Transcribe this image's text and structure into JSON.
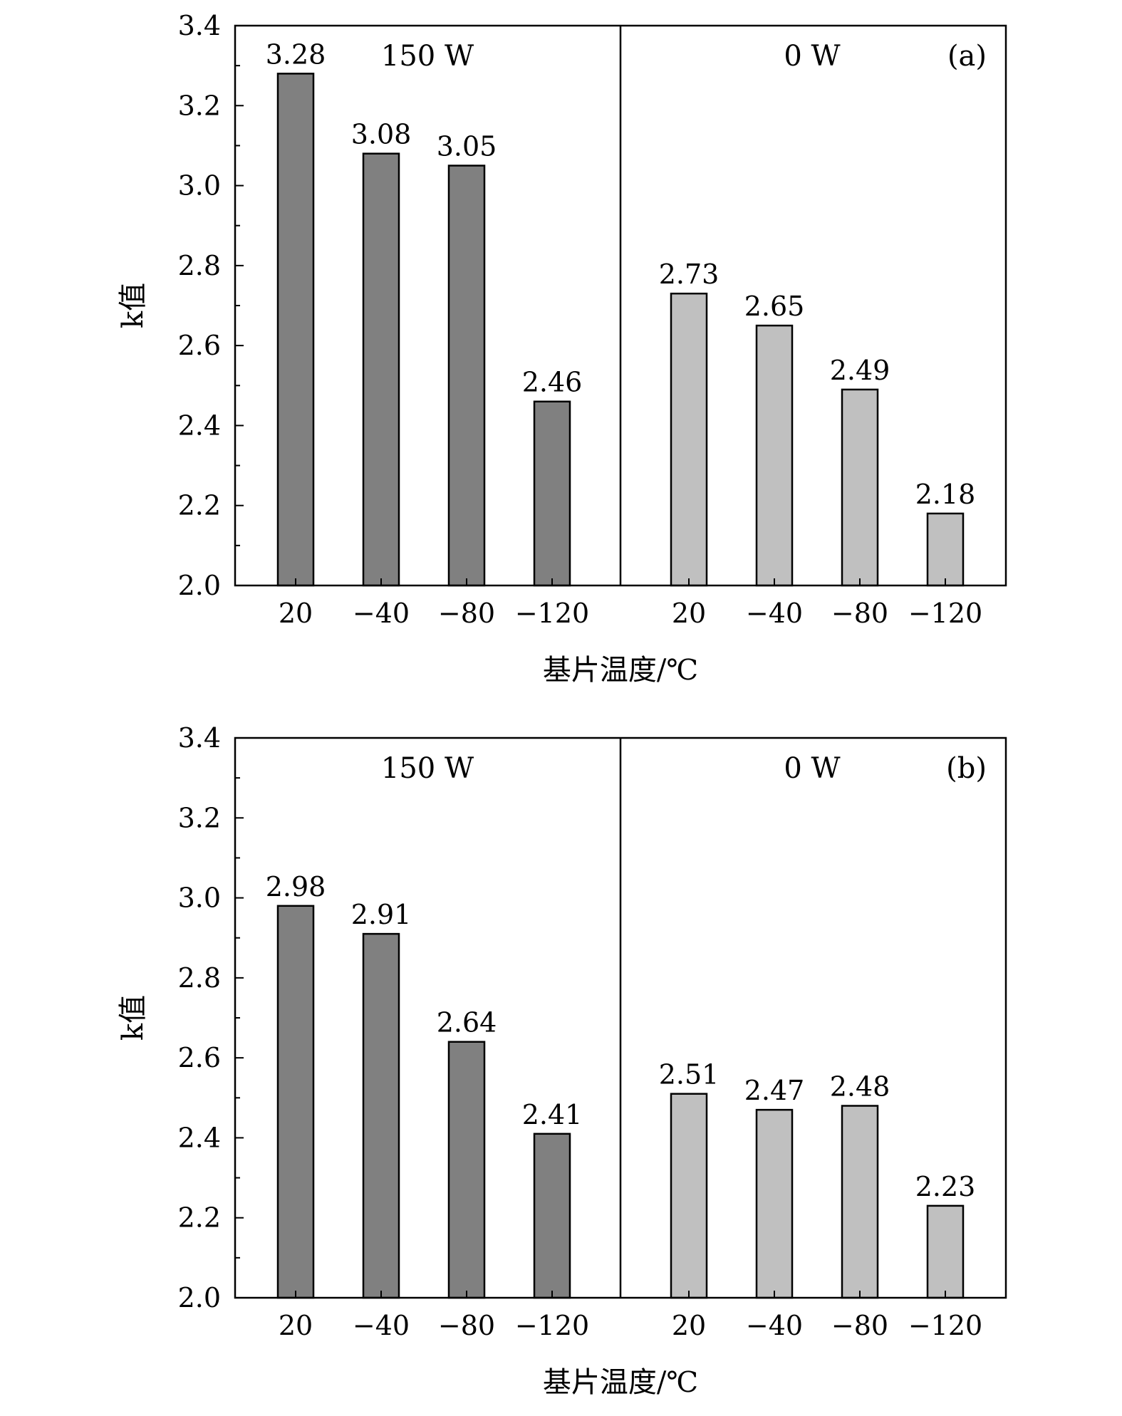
{
  "chart_data": [
    {
      "type": "bar",
      "panel_label": "(a)",
      "group_labels": [
        "150 W",
        "0 W"
      ],
      "categories": [
        "20",
        "−40",
        "−80",
        "−120"
      ],
      "series": [
        {
          "name": "150 W",
          "values": [
            3.28,
            3.08,
            3.05,
            2.46
          ]
        },
        {
          "name": "0 W",
          "values": [
            2.73,
            2.65,
            2.49,
            2.18
          ]
        }
      ],
      "data_labels": [
        [
          "3.28",
          "3.08",
          "3.05",
          "2.46"
        ],
        [
          "2.73",
          "2.65",
          "2.49",
          "2.18"
        ]
      ],
      "ylim": [
        2.0,
        3.4
      ],
      "yticks": [
        "2.0",
        "2.2",
        "2.4",
        "2.6",
        "2.8",
        "3.0",
        "3.2",
        "3.4"
      ],
      "ylabel": "k值",
      "xlabel": "基片温度/℃",
      "bar_colors": [
        "#808080",
        "#c0c0c0"
      ],
      "grid": false
    },
    {
      "type": "bar",
      "panel_label": "(b)",
      "group_labels": [
        "150 W",
        "0 W"
      ],
      "categories": [
        "20",
        "−40",
        "−80",
        "−120"
      ],
      "series": [
        {
          "name": "150 W",
          "values": [
            2.98,
            2.91,
            2.64,
            2.41
          ]
        },
        {
          "name": "0 W",
          "values": [
            2.51,
            2.47,
            2.48,
            2.23
          ]
        }
      ],
      "data_labels": [
        [
          "2.98",
          "2.91",
          "2.64",
          "2.41"
        ],
        [
          "2.51",
          "2.47",
          "2.48",
          "2.23"
        ]
      ],
      "ylim": [
        2.0,
        3.4
      ],
      "yticks": [
        "2.0",
        "2.2",
        "2.4",
        "2.6",
        "2.8",
        "3.0",
        "3.2",
        "3.4"
      ],
      "ylabel": "k值",
      "xlabel": "基片温度/℃",
      "bar_colors": [
        "#808080",
        "#c0c0c0"
      ],
      "grid": false
    }
  ]
}
